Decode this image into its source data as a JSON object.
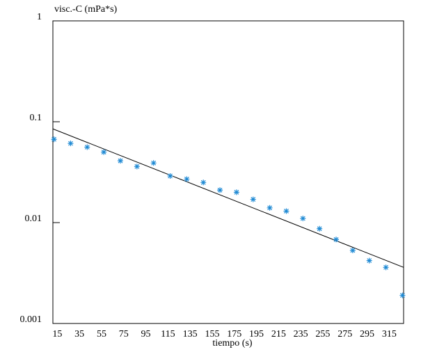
{
  "chart_data": {
    "type": "scatter",
    "title": "visc.-C (mPa*s)",
    "x_label": "tiempo (s)",
    "log_y": true,
    "color": "#1f8ad4",
    "line_color": "#000000",
    "xlim": [
      11,
      328
    ],
    "xticks": [
      15,
      35,
      55,
      75,
      95,
      115,
      135,
      155,
      175,
      195,
      215,
      235,
      255,
      275,
      295,
      315
    ],
    "ylim": [
      0.001,
      1
    ],
    "yticks": [
      0.001,
      0.01,
      0.1,
      1
    ],
    "x": [
      12,
      27,
      42,
      57,
      72,
      87,
      102,
      117,
      132,
      147,
      162,
      177,
      192,
      207,
      222,
      237,
      252,
      267,
      282,
      297,
      312,
      327
    ],
    "values": [
      0.067,
      0.061,
      0.056,
      0.05,
      0.041,
      0.036,
      0.039,
      0.029,
      0.027,
      0.025,
      0.021,
      0.02,
      0.017,
      0.014,
      0.013,
      0.011,
      0.0087,
      0.0068,
      0.0053,
      0.0042,
      0.0036,
      0.0019
    ],
    "line": {
      "x": [
        11,
        328
      ],
      "values": [
        0.085,
        0.0036
      ]
    }
  }
}
